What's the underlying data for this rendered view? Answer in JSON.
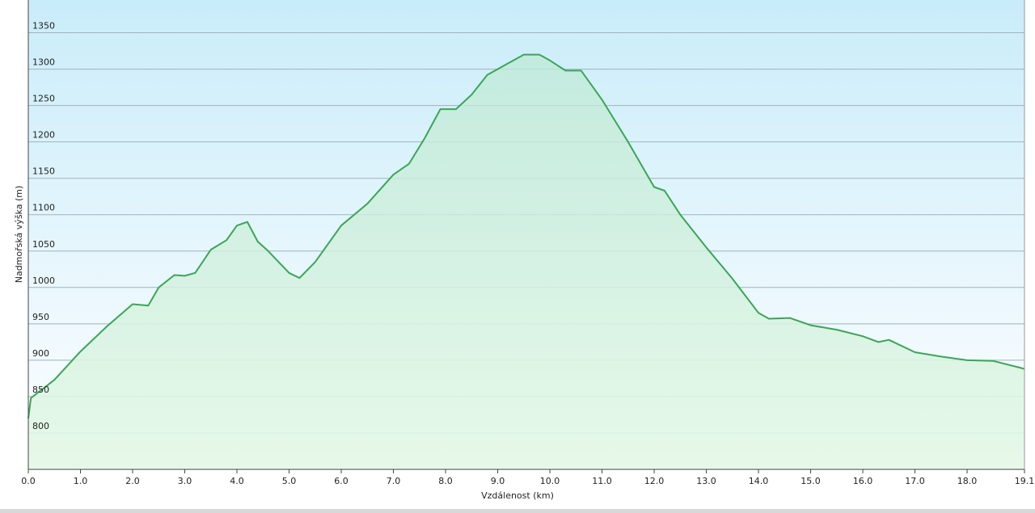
{
  "chart_data": {
    "type": "area",
    "x_label": "Vzdálenost  (km)",
    "y_label": "Nadmořská výška (m)",
    "x": [
      0,
      0.05,
      0.5,
      1.0,
      1.5,
      2.0,
      2.3,
      2.5,
      2.8,
      3.0,
      3.2,
      3.5,
      3.8,
      4.0,
      4.2,
      4.4,
      4.6,
      5.0,
      5.2,
      5.5,
      6.0,
      6.5,
      7.0,
      7.3,
      7.6,
      7.9,
      8.2,
      8.5,
      8.8,
      9.2,
      9.5,
      9.8,
      10.0,
      10.3,
      10.6,
      11.0,
      11.5,
      12.0,
      12.2,
      12.5,
      13.0,
      13.5,
      14.0,
      14.2,
      14.6,
      15.0,
      15.5,
      16.0,
      16.3,
      16.5,
      17.0,
      17.5,
      18.0,
      18.5,
      19.0,
      19.1
    ],
    "values": [
      820,
      848,
      873,
      912,
      946,
      977,
      975,
      1000,
      1017,
      1016,
      1020,
      1052,
      1065,
      1085,
      1090,
      1063,
      1050,
      1020,
      1013,
      1035,
      1085,
      1115,
      1155,
      1170,
      1205,
      1245,
      1245,
      1265,
      1292,
      1308,
      1320,
      1320,
      1312,
      1298,
      1298,
      1258,
      1200,
      1138,
      1133,
      1100,
      1055,
      1012,
      965,
      957,
      958,
      948,
      942,
      933,
      925,
      928,
      911,
      905,
      900,
      899,
      890,
      888
    ],
    "color": "#3aa656",
    "xlim": [
      0,
      19.1
    ],
    "ylim": [
      750,
      1395
    ],
    "xticks": [
      {
        "value": 0,
        "label": "0.0"
      },
      {
        "value": 1,
        "label": "1.0"
      },
      {
        "value": 2,
        "label": "2.0"
      },
      {
        "value": 3,
        "label": "3.0"
      },
      {
        "value": 4,
        "label": "4.0"
      },
      {
        "value": 5,
        "label": "5.0"
      },
      {
        "value": 6,
        "label": "6.0"
      },
      {
        "value": 7,
        "label": "7.0"
      },
      {
        "value": 8,
        "label": "8.0"
      },
      {
        "value": 9,
        "label": "9.0"
      },
      {
        "value": 10,
        "label": "10.0"
      },
      {
        "value": 11,
        "label": "11.0"
      },
      {
        "value": 12,
        "label": "12.0"
      },
      {
        "value": 13,
        "label": "13.0"
      },
      {
        "value": 14,
        "label": "14.0"
      },
      {
        "value": 15,
        "label": "15.0"
      },
      {
        "value": 16,
        "label": "16.0"
      },
      {
        "value": 17,
        "label": "17.0"
      },
      {
        "value": 18,
        "label": "18.0"
      },
      {
        "value": 19.1,
        "label": "19.1"
      }
    ],
    "yticks": [
      800,
      850,
      900,
      950,
      1000,
      1050,
      1100,
      1150,
      1200,
      1250,
      1300,
      1350
    ],
    "grid": true
  }
}
